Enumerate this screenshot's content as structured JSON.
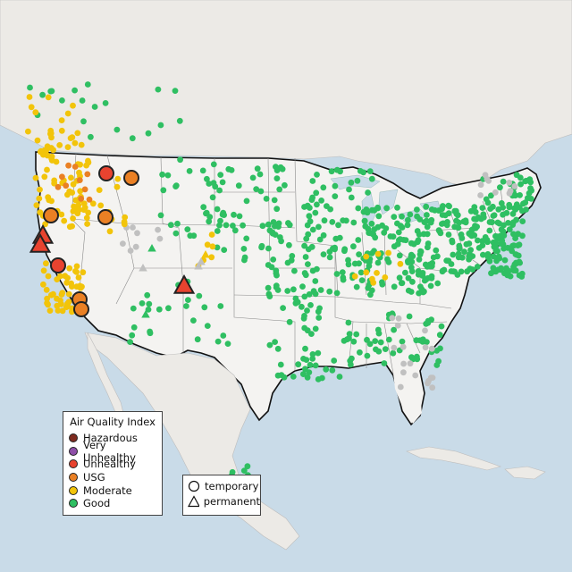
{
  "map": {
    "colors": {
      "water": "#c9dbe8",
      "land": "#eceae6",
      "us_land": "#f2f1ef",
      "hazardous": "#7e2b1f",
      "very_unhealthy": "#8e4fa8",
      "unhealthy": "#e8432f",
      "usg": "#ea8024",
      "moderate": "#f2c40a",
      "good": "#2fbf62",
      "no_data": "#c0c0c0"
    },
    "legend": {
      "title": "Air Quality Index",
      "items": [
        {
          "label": "Hazardous",
          "key": "hazardous"
        },
        {
          "label": "Very Unhealthy",
          "key": "very_unhealthy"
        },
        {
          "label": "Unhealthy",
          "key": "unhealthy"
        },
        {
          "label": "USG",
          "key": "usg"
        },
        {
          "label": "Moderate",
          "key": "moderate"
        },
        {
          "label": "Good",
          "key": "good"
        }
      ]
    },
    "site_legend": {
      "temporary": "temporary",
      "permanent": "permanent"
    }
  }
}
